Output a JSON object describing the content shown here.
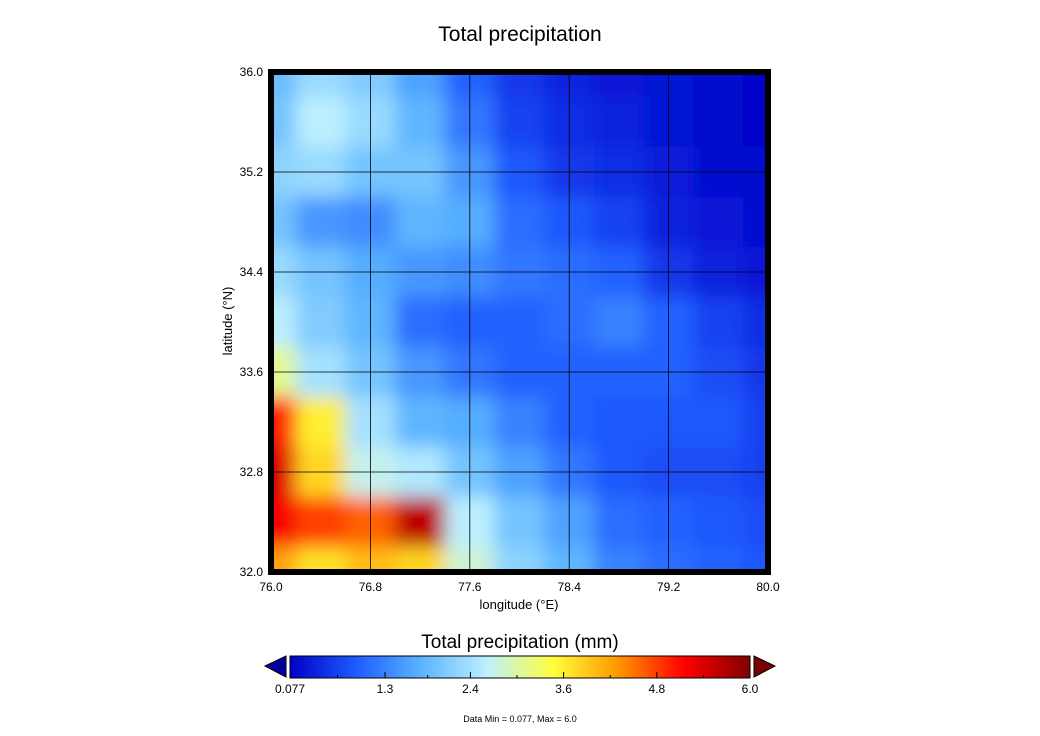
{
  "chart_data": {
    "type": "heatmap",
    "title": "Total precipitation",
    "xlabel": "longitude (°E)",
    "ylabel": "latitude (°N)",
    "xlim": [
      76.0,
      80.0
    ],
    "ylim": [
      32.0,
      36.0
    ],
    "x_ticks": [
      "76.0",
      "76.8",
      "77.6",
      "78.4",
      "79.2",
      "80.0"
    ],
    "y_ticks": [
      "32.0",
      "32.8",
      "33.6",
      "34.4",
      "35.2",
      "36.0"
    ],
    "grid": true,
    "value_unit": "mm",
    "grid_lon": [
      76.0,
      76.4,
      76.8,
      77.2,
      77.6,
      78.0,
      78.4,
      78.8,
      79.2,
      79.6,
      80.0
    ],
    "grid_lat": [
      36.0,
      35.6,
      35.2,
      34.8,
      34.4,
      34.0,
      33.6,
      33.2,
      32.8,
      32.4,
      32.0
    ],
    "values": [
      [
        1.9,
        2.3,
        2.1,
        1.6,
        1.0,
        0.6,
        0.4,
        0.3,
        0.25,
        0.15,
        0.1
      ],
      [
        2.0,
        2.6,
        2.3,
        1.8,
        1.2,
        0.7,
        0.5,
        0.4,
        0.25,
        0.15,
        0.1
      ],
      [
        2.2,
        2.3,
        2.0,
        2.0,
        1.5,
        0.9,
        0.6,
        0.5,
        0.35,
        0.2,
        0.15
      ],
      [
        2.0,
        1.5,
        1.4,
        1.8,
        1.7,
        1.1,
        0.9,
        0.7,
        0.4,
        0.3,
        0.2
      ],
      [
        2.3,
        2.0,
        1.7,
        1.5,
        1.4,
        1.2,
        1.1,
        1.0,
        0.6,
        0.4,
        0.3
      ],
      [
        2.6,
        2.1,
        1.8,
        1.1,
        1.0,
        1.0,
        1.1,
        1.3,
        1.0,
        0.7,
        0.5
      ],
      [
        3.1,
        2.4,
        2.0,
        1.5,
        1.2,
        1.0,
        1.0,
        1.0,
        1.0,
        0.8,
        0.6
      ],
      [
        5.0,
        3.6,
        2.4,
        1.8,
        1.7,
        1.3,
        1.0,
        0.9,
        0.9,
        0.9,
        0.7
      ],
      [
        5.4,
        3.8,
        2.7,
        2.5,
        2.0,
        1.6,
        1.2,
        0.9,
        0.8,
        0.8,
        0.7
      ],
      [
        5.2,
        4.8,
        4.6,
        5.6,
        2.6,
        2.0,
        1.6,
        1.1,
        1.0,
        0.9,
        0.8
      ],
      [
        4.2,
        3.7,
        4.0,
        3.8,
        2.8,
        2.2,
        1.8,
        1.3,
        1.1,
        1.0,
        0.9
      ]
    ],
    "colorbar": {
      "title": "Total precipitation (mm)",
      "min": 0.077,
      "max": 6.0,
      "tick_values": [
        0.077,
        1.3,
        2.4,
        3.6,
        4.8,
        6.0
      ],
      "tick_labels": [
        "0.077",
        "1.3",
        "2.4",
        "3.6",
        "4.8",
        "6.0"
      ],
      "colors": [
        "#0000c8",
        "#1e5aff",
        "#5ab4ff",
        "#bef0ff",
        "#ffff3c",
        "#ff9600",
        "#ff0000",
        "#820000"
      ],
      "under_color": "#0000a0",
      "over_color": "#780000"
    },
    "footnote": "Data Min = 0.077, Max = 6.0"
  }
}
